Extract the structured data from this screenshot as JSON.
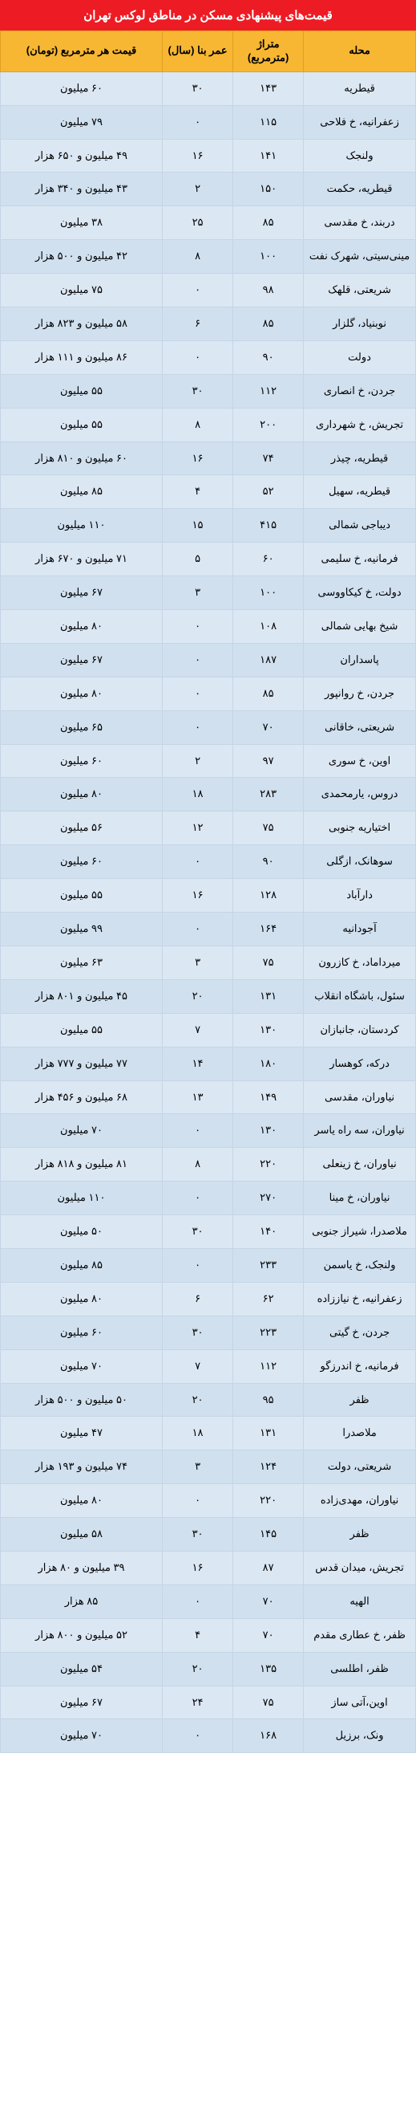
{
  "title": "قیمت‌های پیشنهادی مسکن در مناطق لوکس تهران",
  "columns": {
    "neighborhood": "محله",
    "area": "متراژ (مترمربع)",
    "age": "عمر بنا (سال)",
    "price": "قیمت هر مترمربع (تومان)"
  },
  "rows": [
    {
      "n": "قیطریه",
      "a": "۱۴۳",
      "g": "۳۰",
      "p": "۶۰ میلیون"
    },
    {
      "n": "زعفرانیه، خ فلاحی",
      "a": "۱۱۵",
      "g": "۰",
      "p": "۷۹ میلیون"
    },
    {
      "n": "ولنجک",
      "a": "۱۴۱",
      "g": "۱۶",
      "p": "۴۹ میلیون و ۶۵۰ هزار"
    },
    {
      "n": "قیطریه، حکمت",
      "a": "۱۵۰",
      "g": "۲",
      "p": "۴۳ میلیون و ۳۴۰ هزار"
    },
    {
      "n": "دربند، خ مقدسی",
      "a": "۸۵",
      "g": "۲۵",
      "p": "۳۸ میلیون"
    },
    {
      "n": "مینی‌سیتی، شهرک نفت",
      "a": "۱۰۰",
      "g": "۸",
      "p": "۴۲ میلیون و ۵۰۰ هزار"
    },
    {
      "n": "شریعتی، قلهک",
      "a": "۹۸",
      "g": "۰",
      "p": "۷۵ میلیون"
    },
    {
      "n": "نوبنیاد، گلزار",
      "a": "۸۵",
      "g": "۶",
      "p": "۵۸ میلیون و ۸۲۳ هزار"
    },
    {
      "n": "دولت",
      "a": "۹۰",
      "g": "۰",
      "p": "۸۶ میلیون و ۱۱۱ هزار"
    },
    {
      "n": "جردن، خ انصاری",
      "a": "۱۱۲",
      "g": "۳۰",
      "p": "۵۵ میلیون"
    },
    {
      "n": "تجریش، خ شهرداری",
      "a": "۲۰۰",
      "g": "۸",
      "p": "۵۵ میلیون"
    },
    {
      "n": "قیطریه، چیذر",
      "a": "۷۴",
      "g": "۱۶",
      "p": "۶۰ میلیون و ۸۱۰ هزار"
    },
    {
      "n": "قیطریه، سهیل",
      "a": "۵۲",
      "g": "۴",
      "p": "۸۵ میلیون"
    },
    {
      "n": "دیباجی شمالی",
      "a": "۴۱۵",
      "g": "۱۵",
      "p": "۱۱۰ میلیون"
    },
    {
      "n": "فرمانیه، خ سلیمی",
      "a": "۶۰",
      "g": "۵",
      "p": "۷۱ میلیون و ۶۷۰ هزار"
    },
    {
      "n": "دولت، خ کیکاووسی",
      "a": "۱۰۰",
      "g": "۳",
      "p": "۶۷ میلیون"
    },
    {
      "n": "شیخ بهایی شمالی",
      "a": "۱۰۸",
      "g": "۰",
      "p": "۸۰ میلیون"
    },
    {
      "n": "پاسداران",
      "a": "۱۸۷",
      "g": "۰",
      "p": "۶۷ میلیون"
    },
    {
      "n": "جردن، خ روانپور",
      "a": "۸۵",
      "g": "۰",
      "p": "۸۰ میلیون"
    },
    {
      "n": "شریعتی، خاقانی",
      "a": "۷۰",
      "g": "۰",
      "p": "۶۵ میلیون"
    },
    {
      "n": "اوین، خ سوری",
      "a": "۹۷",
      "g": "۲",
      "p": "۶۰ میلیون"
    },
    {
      "n": "دروس، یارمحمدی",
      "a": "۲۸۳",
      "g": "۱۸",
      "p": "۸۰ میلیون"
    },
    {
      "n": "اختیاریه جنوبی",
      "a": "۷۵",
      "g": "۱۲",
      "p": "۵۶ میلیون"
    },
    {
      "n": "سوهانک، ازگلی",
      "a": "۹۰",
      "g": "۰",
      "p": "۶۰ میلیون"
    },
    {
      "n": "دارآباد",
      "a": "۱۲۸",
      "g": "۱۶",
      "p": "۵۵ میلیون"
    },
    {
      "n": "آجودانیه",
      "a": "۱۶۴",
      "g": "۰",
      "p": "۹۹ میلیون"
    },
    {
      "n": "میرداماد، خ کازرون",
      "a": "۷۵",
      "g": "۳",
      "p": "۶۳ میلیون"
    },
    {
      "n": "سئول، باشگاه انقلاب",
      "a": "۱۳۱",
      "g": "۲۰",
      "p": "۴۵ میلیون و ۸۰۱ هزار"
    },
    {
      "n": "کردستان، جانبازان",
      "a": "۱۳۰",
      "g": "۷",
      "p": "۵۵ میلیون"
    },
    {
      "n": "درکه، کوهسار",
      "a": "۱۸۰",
      "g": "۱۴",
      "p": "۷۷ میلیون و ۷۷۷ هزار"
    },
    {
      "n": "نیاوران، مقدسی",
      "a": "۱۴۹",
      "g": "۱۳",
      "p": "۶۸ میلیون و ۴۵۶ هزار"
    },
    {
      "n": "نیاوران، سه راه یاسر",
      "a": "۱۳۰",
      "g": "۰",
      "p": "۷۰ میلیون"
    },
    {
      "n": "نیاوران، خ زینعلی",
      "a": "۲۲۰",
      "g": "۸",
      "p": "۸۱ میلیون و ۸۱۸ هزار"
    },
    {
      "n": "نیاوران، خ مینا",
      "a": "۲۷۰",
      "g": "۰",
      "p": "۱۱۰ میلیون"
    },
    {
      "n": "ملاصدرا، شیراز جنوبی",
      "a": "۱۴۰",
      "g": "۳۰",
      "p": "۵۰ میلیون"
    },
    {
      "n": "ولنجک، خ یاسمن",
      "a": "۲۳۳",
      "g": "۰",
      "p": "۸۵ میلیون"
    },
    {
      "n": "زعفرانیه، خ نیاززاده",
      "a": "۶۲",
      "g": "۶",
      "p": "۸۰ میلیون"
    },
    {
      "n": "جردن، خ گیتی",
      "a": "۲۲۳",
      "g": "۳۰",
      "p": "۶۰ میلیون"
    },
    {
      "n": "فرمانیه، خ اندرزگو",
      "a": "۱۱۲",
      "g": "۷",
      "p": "۷۰ میلیون"
    },
    {
      "n": "ظفر",
      "a": "۹۵",
      "g": "۲۰",
      "p": "۵۰ میلیون و ۵۰۰ هزار"
    },
    {
      "n": "ملاصدرا",
      "a": "۱۳۱",
      "g": "۱۸",
      "p": "۴۷ میلیون"
    },
    {
      "n": "شریعتی، دولت",
      "a": "۱۲۴",
      "g": "۳",
      "p": "۷۴ میلیون و ۱۹۳ هزار"
    },
    {
      "n": "نیاوران، مهدی‌زاده",
      "a": "۲۲۰",
      "g": "۰",
      "p": "۸۰ میلیون"
    },
    {
      "n": "ظفر",
      "a": "۱۴۵",
      "g": "۳۰",
      "p": "۵۸ میلیون"
    },
    {
      "n": "تجریش، میدان قدس",
      "a": "۸۷",
      "g": "۱۶",
      "p": "۳۹ میلیون و ۸۰ هزار"
    },
    {
      "n": "الهیه",
      "a": "۷۰",
      "g": "۰",
      "p": "۸۵ هزار"
    },
    {
      "n": "ظفر، خ عطاری مقدم",
      "a": "۷۰",
      "g": "۴",
      "p": "۵۲ میلیون و ۸۰۰ هزار"
    },
    {
      "n": "ظفر، اطلسی",
      "a": "۱۳۵",
      "g": "۲۰",
      "p": "۵۴ میلیون"
    },
    {
      "n": "اوین،آتی ساز",
      "a": "۷۵",
      "g": "۲۴",
      "p": "۶۷ میلیون"
    },
    {
      "n": "ونک، برزیل",
      "a": "۱۶۸",
      "g": "۰",
      "p": "۷۰ میلیون"
    }
  ],
  "style": {
    "title_bg": "#ed1c24",
    "title_fg": "#ffffff",
    "header_bg": "#f7b733",
    "row_bg": "#dbe7f3",
    "row_alt_bg": "#d0e0ef",
    "row_border": "#c5d5e5",
    "font_family": "Tahoma",
    "font_size_header": 13,
    "font_size_cell": 13
  }
}
